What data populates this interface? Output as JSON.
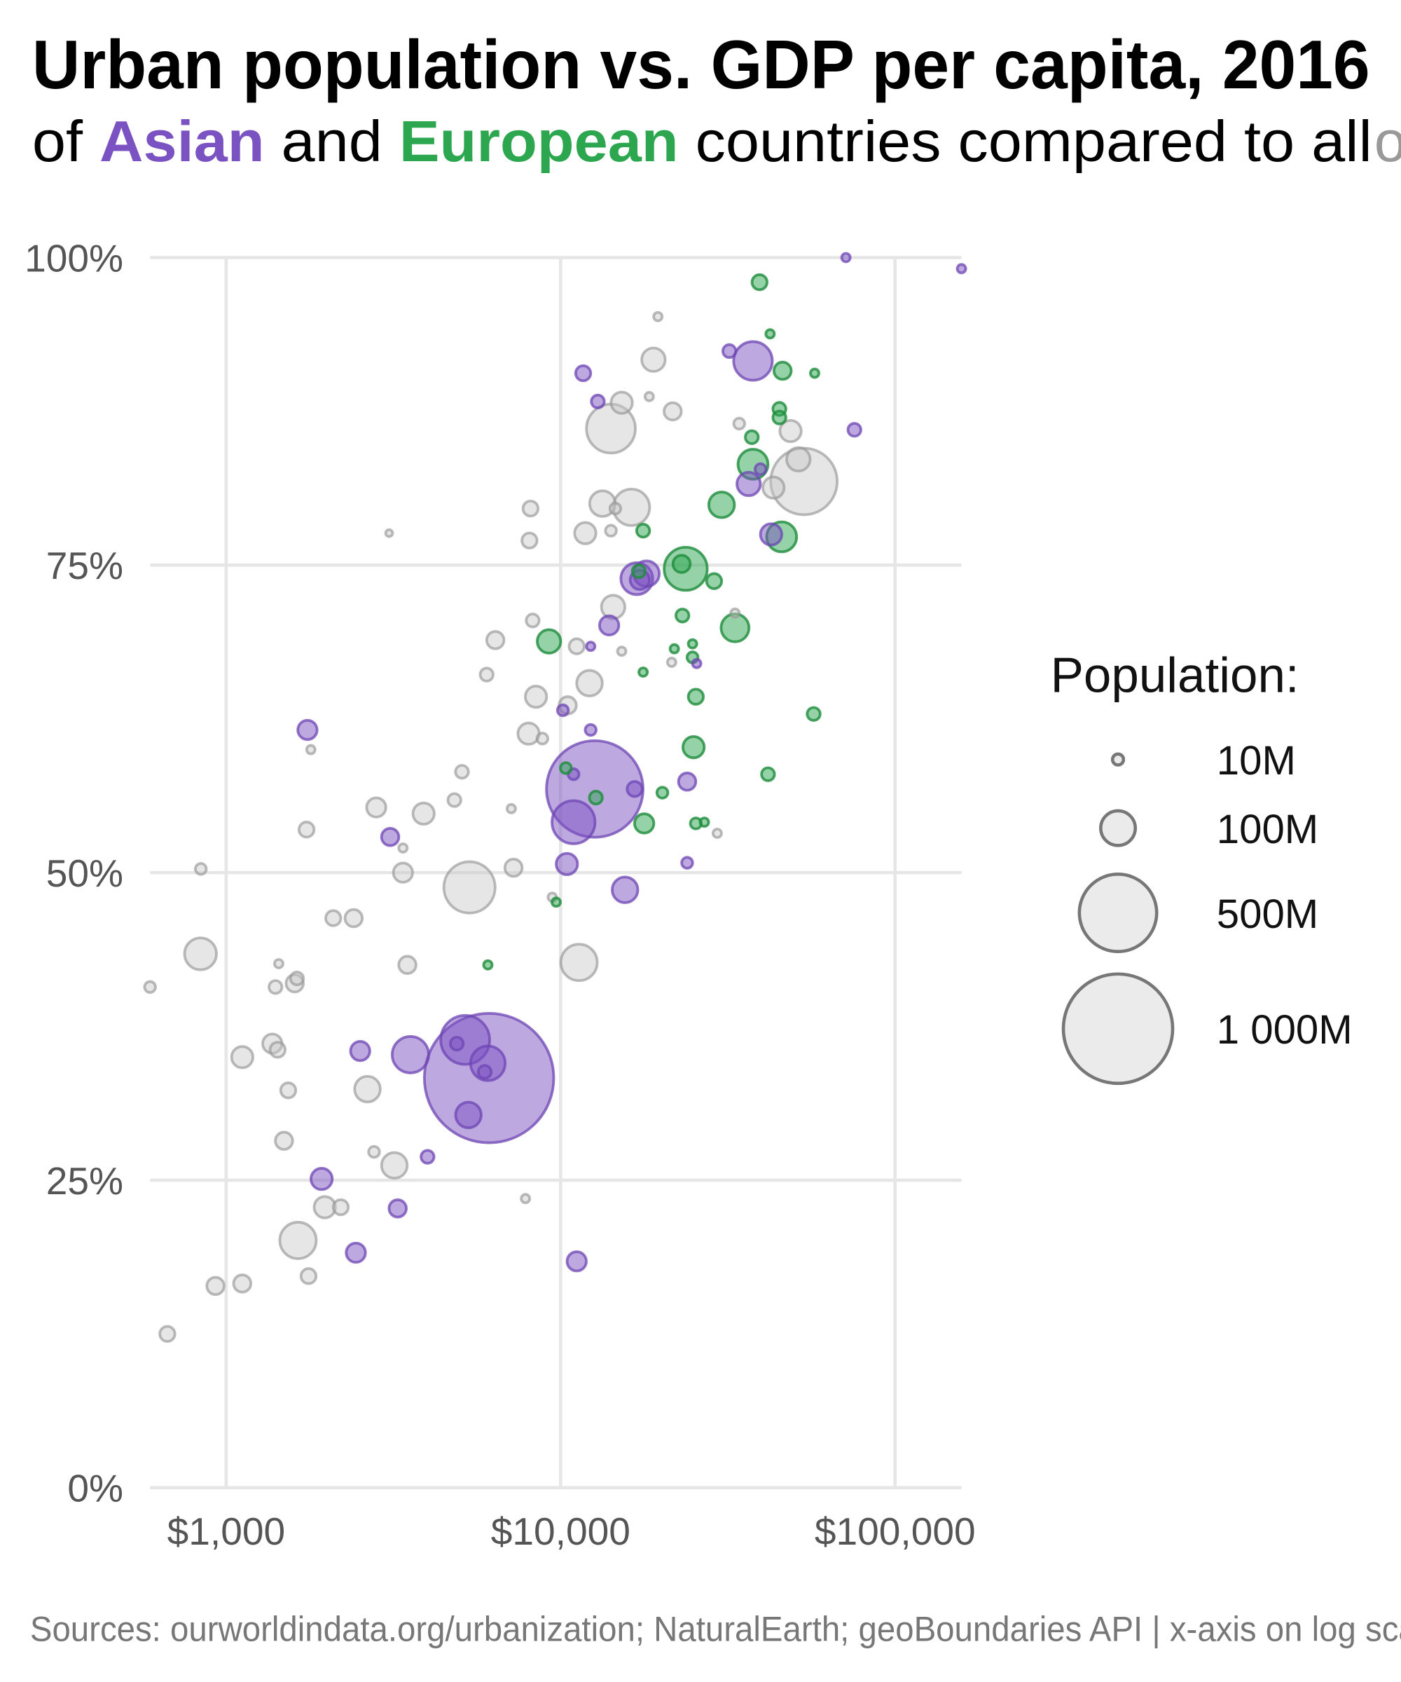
{
  "chart_data": {
    "type": "scatter",
    "title": "Urban population vs. GDP per capita, 2016",
    "subtitle": {
      "prefix": "of ",
      "asian": "Asian",
      "and": " and ",
      "european": "European",
      "rest": " countries compared to all ",
      "others": "others"
    },
    "caption": "Sources: ourworldindata.org/urbanization; NaturalEarth; geoBoundaries API | x-axis on log scale",
    "xlabel": "",
    "ylabel": "",
    "xscale": "log",
    "xlim": [
      600,
      160000
    ],
    "ylim": [
      0,
      100
    ],
    "x_ticks": [
      {
        "value": 1000,
        "label": "$1,000"
      },
      {
        "value": 10000,
        "label": "$10,000"
      },
      {
        "value": 100000,
        "label": "$100,000"
      }
    ],
    "y_ticks": [
      {
        "value": 0,
        "label": "0%"
      },
      {
        "value": 25,
        "label": "25%"
      },
      {
        "value": 50,
        "label": "50%"
      },
      {
        "value": 75,
        "label": "75%"
      },
      {
        "value": 100,
        "label": "100%"
      }
    ],
    "grid": true,
    "legend": {
      "title": "Population:",
      "placement": "right",
      "entries": [
        {
          "value": 10,
          "label": "10M"
        },
        {
          "value": 100,
          "label": "100M"
        },
        {
          "value": 500,
          "label": "500M"
        },
        {
          "value": 1000,
          "label": "1 000M"
        }
      ]
    },
    "colors": {
      "asia": "#7b52c1",
      "europe": "#2ca64f",
      "other": "#b0b0b0"
    },
    "point_fields": [
      "gdp_per_capita",
      "urban_pct",
      "population_millions",
      "group"
    ],
    "points": [
      [
        592,
        40.7,
        10,
        "other"
      ],
      [
        838,
        43.4,
        85,
        "other"
      ],
      [
        840,
        50.3,
        10,
        "other"
      ],
      [
        667,
        12.5,
        19,
        "other"
      ],
      [
        929,
        16.4,
        25,
        "other"
      ],
      [
        1117,
        16.6,
        25,
        "other"
      ],
      [
        1117,
        35.0,
        38,
        "other"
      ],
      [
        1374,
        36.1,
        31,
        "other"
      ],
      [
        1425,
        35.6,
        19,
        "other"
      ],
      [
        1436,
        42.6,
        6,
        "other"
      ],
      [
        1404,
        40.7,
        14,
        "other"
      ],
      [
        1603,
        41.0,
        25,
        "other"
      ],
      [
        1628,
        41.4,
        14,
        "other"
      ],
      [
        1533,
        32.3,
        19,
        "other"
      ],
      [
        1489,
        28.2,
        25,
        "other"
      ],
      [
        1640,
        20.1,
        111,
        "other"
      ],
      [
        1763,
        17.2,
        19,
        "other"
      ],
      [
        1972,
        22.8,
        38,
        "other"
      ],
      [
        2201,
        22.8,
        19,
        "other"
      ],
      [
        1739,
        53.5,
        19,
        "other"
      ],
      [
        1791,
        60.0,
        6,
        "other"
      ],
      [
        2090,
        46.3,
        19,
        "other"
      ],
      [
        2405,
        46.3,
        25,
        "other"
      ],
      [
        2645,
        32.4,
        55,
        "other"
      ],
      [
        2768,
        27.3,
        10,
        "other"
      ],
      [
        2810,
        55.3,
        31,
        "other"
      ],
      [
        3184,
        26.2,
        55,
        "other"
      ],
      [
        3378,
        52.0,
        6,
        "other"
      ],
      [
        3378,
        50.0,
        31,
        "other"
      ],
      [
        3482,
        42.5,
        25,
        "other"
      ],
      [
        3893,
        54.8,
        38,
        "other"
      ],
      [
        3071,
        77.6,
        4,
        "other"
      ],
      [
        5340,
        48.8,
        220,
        "other"
      ],
      [
        4813,
        55.9,
        14,
        "other"
      ],
      [
        5070,
        58.2,
        14,
        "other"
      ],
      [
        6010,
        66.1,
        14,
        "other"
      ],
      [
        6380,
        68.9,
        25,
        "other"
      ],
      [
        7120,
        55.2,
        6,
        "other"
      ],
      [
        7230,
        50.4,
        25,
        "other"
      ],
      [
        7850,
        23.5,
        6,
        "other"
      ],
      [
        8020,
        61.3,
        38,
        "other"
      ],
      [
        8440,
        64.3,
        38,
        "other"
      ],
      [
        8070,
        77.0,
        19,
        "other"
      ],
      [
        8130,
        79.6,
        19,
        "other"
      ],
      [
        8250,
        70.5,
        14,
        "other"
      ],
      [
        8820,
        60.9,
        10,
        "other"
      ],
      [
        9440,
        48.0,
        6,
        "other"
      ],
      [
        10500,
        63.6,
        25,
        "other"
      ],
      [
        11350,
        42.7,
        111,
        "other"
      ],
      [
        11170,
        68.4,
        19,
        "other"
      ],
      [
        11850,
        77.6,
        38,
        "other"
      ],
      [
        12200,
        65.4,
        55,
        "other"
      ],
      [
        13340,
        80.0,
        55,
        "other"
      ],
      [
        14140,
        77.8,
        10,
        "other"
      ],
      [
        14140,
        86.1,
        200,
        "other"
      ],
      [
        14360,
        71.6,
        46,
        "other"
      ],
      [
        14570,
        79.6,
        10,
        "other"
      ],
      [
        15230,
        68.0,
        6,
        "other"
      ],
      [
        15230,
        88.2,
        38,
        "other"
      ],
      [
        16280,
        79.7,
        111,
        "other"
      ],
      [
        18410,
        88.7,
        6,
        "other"
      ],
      [
        18950,
        91.7,
        46,
        "other"
      ],
      [
        19540,
        95.2,
        6,
        "other"
      ],
      [
        21630,
        87.5,
        25,
        "other"
      ],
      [
        21480,
        67.1,
        6,
        "other"
      ],
      [
        33230,
        71.1,
        6,
        "other"
      ],
      [
        29400,
        53.2,
        6,
        "other"
      ],
      [
        34200,
        86.5,
        10,
        "other"
      ],
      [
        43300,
        81.3,
        38,
        "other"
      ],
      [
        48700,
        85.9,
        38,
        "other"
      ],
      [
        51400,
        83.6,
        46,
        "other"
      ],
      [
        53400,
        81.8,
        370,
        "other"
      ],
      [
        1750,
        61.6,
        31,
        "asia"
      ],
      [
        1929,
        25.1,
        38,
        "asia"
      ],
      [
        2516,
        35.5,
        31,
        "asia"
      ],
      [
        2442,
        19.1,
        31,
        "asia"
      ],
      [
        3257,
        22.7,
        25,
        "asia"
      ],
      [
        4000,
        26.9,
        14,
        "asia"
      ],
      [
        3093,
        52.9,
        25,
        "asia"
      ],
      [
        3556,
        35.2,
        111,
        "asia"
      ],
      [
        4893,
        36.1,
        14,
        "asia"
      ],
      [
        5184,
        36.4,
        200,
        "asia"
      ],
      [
        5300,
        30.3,
        55,
        "asia"
      ],
      [
        6110,
        33.3,
        1400,
        "asia"
      ],
      [
        6060,
        34.5,
        100,
        "asia"
      ],
      [
        5930,
        33.8,
        14,
        "asia"
      ],
      [
        11170,
        18.4,
        31,
        "asia"
      ],
      [
        10440,
        50.7,
        38,
        "asia"
      ],
      [
        10930,
        54.1,
        155,
        "asia"
      ],
      [
        12650,
        56.8,
        780,
        "asia"
      ],
      [
        10930,
        58.0,
        10,
        "asia"
      ],
      [
        10160,
        63.2,
        10,
        "asia"
      ],
      [
        12300,
        61.6,
        10,
        "asia"
      ],
      [
        13970,
        70.1,
        31,
        "asia"
      ],
      [
        15580,
        48.6,
        55,
        "asia"
      ],
      [
        16650,
        56.8,
        19,
        "asia"
      ],
      [
        16900,
        73.9,
        85,
        "asia"
      ],
      [
        18060,
        74.3,
        55,
        "asia"
      ],
      [
        17250,
        73.8,
        31,
        "asia"
      ],
      [
        11680,
        90.6,
        19,
        "asia"
      ],
      [
        12920,
        88.3,
        14,
        "asia"
      ],
      [
        12300,
        68.4,
        6,
        "asia"
      ],
      [
        23900,
        57.4,
        25,
        "asia"
      ],
      [
        23900,
        50.8,
        10,
        "asia"
      ],
      [
        25520,
        67.0,
        6,
        "asia"
      ],
      [
        31950,
        92.4,
        14,
        "asia"
      ],
      [
        37600,
        91.6,
        125,
        "asia"
      ],
      [
        36500,
        81.6,
        46,
        "asia"
      ],
      [
        42600,
        77.5,
        38,
        "asia"
      ],
      [
        39600,
        82.8,
        10,
        "asia"
      ],
      [
        71300,
        100,
        6,
        "asia"
      ],
      [
        75600,
        86.0,
        14,
        "asia"
      ],
      [
        158000,
        99.1,
        6,
        "asia"
      ],
      [
        6060,
        42.5,
        6,
        "europe"
      ],
      [
        9230,
        68.8,
        46,
        "europe"
      ],
      [
        9700,
        47.6,
        6,
        "europe"
      ],
      [
        10370,
        58.5,
        10,
        "europe"
      ],
      [
        12750,
        56.1,
        14,
        "europe"
      ],
      [
        17780,
        54.0,
        31,
        "europe"
      ],
      [
        17650,
        66.3,
        6,
        "europe"
      ],
      [
        17650,
        77.8,
        14,
        "europe"
      ],
      [
        17120,
        74.5,
        14,
        "europe"
      ],
      [
        20150,
        56.5,
        10,
        "europe"
      ],
      [
        21880,
        68.2,
        6,
        "europe"
      ],
      [
        23130,
        70.9,
        14,
        "europe"
      ],
      [
        23660,
        74.7,
        155,
        "europe"
      ],
      [
        23000,
        75.1,
        25,
        "europe"
      ],
      [
        24980,
        60.2,
        38,
        "europe"
      ],
      [
        25370,
        64.3,
        19,
        "europe"
      ],
      [
        25370,
        54.0,
        10,
        "europe"
      ],
      [
        26910,
        54.1,
        6,
        "europe"
      ],
      [
        24800,
        68.6,
        6,
        "europe"
      ],
      [
        24800,
        67.5,
        10,
        "europe"
      ],
      [
        28770,
        73.7,
        19,
        "europe"
      ],
      [
        30300,
        79.9,
        55,
        "europe"
      ],
      [
        33230,
        69.9,
        65,
        "europe"
      ],
      [
        37300,
        85.4,
        14,
        "europe"
      ],
      [
        37600,
        83.2,
        75,
        "europe"
      ],
      [
        39340,
        98.0,
        19,
        "europe"
      ],
      [
        41700,
        58.0,
        14,
        "europe"
      ],
      [
        42300,
        93.8,
        6,
        "europe"
      ],
      [
        45100,
        87.7,
        14,
        "europe"
      ],
      [
        45100,
        87.0,
        14,
        "europe"
      ],
      [
        46100,
        90.8,
        25,
        "europe"
      ],
      [
        45800,
        77.3,
        75,
        "europe"
      ],
      [
        57500,
        90.6,
        6,
        "europe"
      ],
      [
        57100,
        62.9,
        14,
        "europe"
      ]
    ]
  }
}
